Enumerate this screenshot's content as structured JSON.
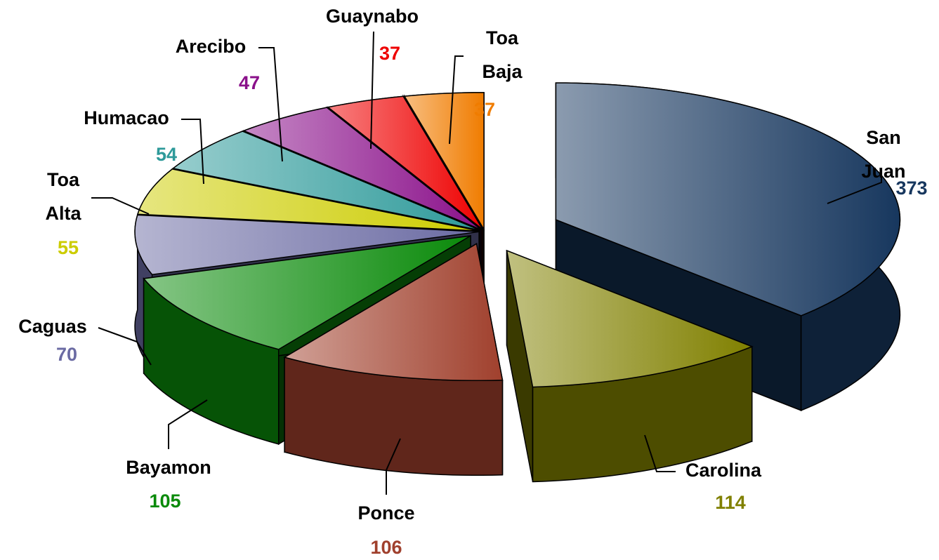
{
  "chart_data": {
    "type": "pie3d",
    "categories": [
      "San Juan",
      "Carolina",
      "Ponce",
      "Bayamon",
      "Caguas",
      "Toa Alta",
      "Humacao",
      "Arecibo",
      "Guaynabo",
      "Toa Baja"
    ],
    "values": [
      373,
      114,
      106,
      105,
      70,
      55,
      54,
      47,
      37,
      37
    ],
    "colors": [
      "#17375e",
      "#808000",
      "#a0402d",
      "#0a8a0a",
      "#6b6ba3",
      "#cccc00",
      "#2e9a9a",
      "#8a108a",
      "#ee0000",
      "#f07c00"
    ]
  }
}
